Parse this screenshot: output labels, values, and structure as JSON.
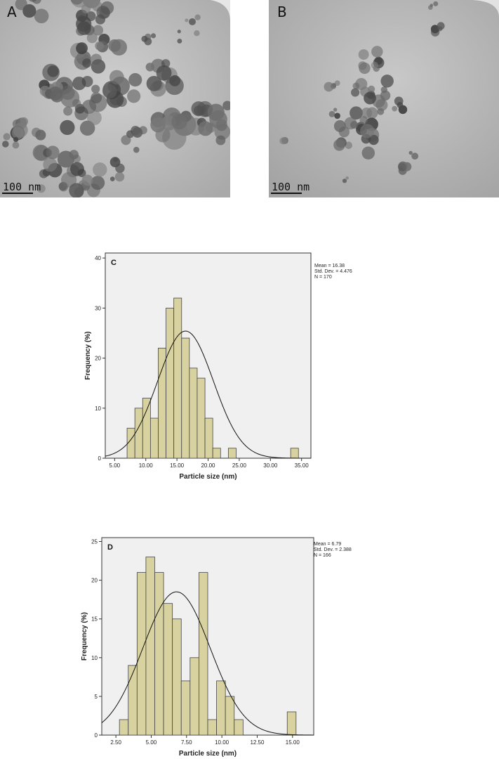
{
  "panels": {
    "a": {
      "letter": "A",
      "scale_label": "100 nm"
    },
    "b": {
      "letter": "B",
      "scale_label": "100 nm"
    }
  },
  "colors": {
    "bar_fill": "#d8d2a0",
    "bar_stroke": "#444444",
    "plot_bg": "#f0f0f0",
    "curve": "#111111"
  },
  "chart_data": [
    {
      "type": "bar",
      "panel_letter": "C",
      "xlabel": "Particle size (nm)",
      "ylabel": "Frequency (%)",
      "xlim": [
        3.5,
        36.5
      ],
      "ylim": [
        0,
        41
      ],
      "xticks": [
        5,
        10,
        15,
        20,
        25,
        30,
        35
      ],
      "xtick_labels": [
        "5.00",
        "10.00",
        "15.00",
        "20.00",
        "25.00",
        "30.00",
        "35.00"
      ],
      "yticks": [
        0,
        10,
        20,
        30,
        40
      ],
      "bin_start": 7.0,
      "bin_width": 1.25,
      "values": [
        6,
        10,
        12,
        8,
        22,
        30,
        32,
        24,
        18,
        16,
        8,
        2,
        0,
        2,
        0,
        0,
        0,
        0,
        0,
        0,
        0,
        2
      ],
      "stats": {
        "mean_text": "Mean = 16.38",
        "std_text": "Std. Dev. = 4.476",
        "n_text": "N = 170"
      },
      "normal_curve": {
        "mean": 16.38,
        "std": 4.476,
        "peak": 25.4
      }
    },
    {
      "type": "bar",
      "panel_letter": "D",
      "xlabel": "Particle size (nm)",
      "ylabel": "Frequency (%)",
      "xlim": [
        1.5,
        16.5
      ],
      "ylim": [
        0,
        25.5
      ],
      "xticks": [
        2.5,
        5,
        7.5,
        10,
        12.5,
        15
      ],
      "xtick_labels": [
        "2.50",
        "5.00",
        "7.50",
        "10.00",
        "12.50",
        "15.00"
      ],
      "yticks": [
        0,
        5,
        10,
        15,
        20,
        25
      ],
      "bin_start": 2.75,
      "bin_width": 0.625,
      "values": [
        2,
        9,
        21,
        23,
        21,
        17,
        15,
        7,
        10,
        21,
        2,
        7,
        5,
        2,
        0,
        0,
        0,
        0,
        0,
        3
      ],
      "stats": {
        "mean_text": "Mean = 6.79",
        "std_text": "Std. Dev. = 2.388",
        "n_text": "N = 166"
      },
      "normal_curve": {
        "mean": 6.79,
        "std": 2.388,
        "peak": 18.5
      }
    }
  ]
}
